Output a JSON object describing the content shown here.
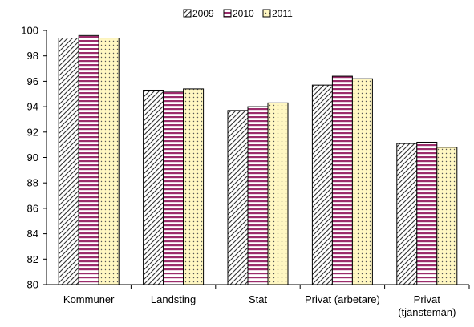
{
  "chart_data": {
    "type": "bar",
    "categories": [
      "Kommuner",
      "Landsting",
      "Stat",
      "Privat (arbetare)",
      "Privat (tjänstemän)"
    ],
    "category_lines": [
      [
        "Kommuner"
      ],
      [
        "Landsting"
      ],
      [
        "Stat"
      ],
      [
        "Privat (arbetare)"
      ],
      [
        "Privat",
        "(tjänstemän)"
      ]
    ],
    "series": [
      {
        "name": "2009",
        "values": [
          99.4,
          95.3,
          93.7,
          95.7,
          91.1
        ],
        "pattern": "diagonal-hatch",
        "color": "#333333"
      },
      {
        "name": "2010",
        "values": [
          99.6,
          95.2,
          94.0,
          96.4,
          91.2
        ],
        "pattern": "horizontal-stripes",
        "color": "#9b2c6b"
      },
      {
        "name": "2011",
        "values": [
          99.4,
          95.4,
          94.3,
          96.2,
          90.8
        ],
        "pattern": "dots",
        "color": "#fff7c2"
      }
    ],
    "ylim": [
      80,
      100
    ],
    "yticks": [
      80,
      82,
      84,
      86,
      88,
      90,
      92,
      94,
      96,
      98,
      100
    ],
    "title": "",
    "xlabel": "",
    "ylabel": "",
    "grid": false,
    "legend_position": "top"
  }
}
